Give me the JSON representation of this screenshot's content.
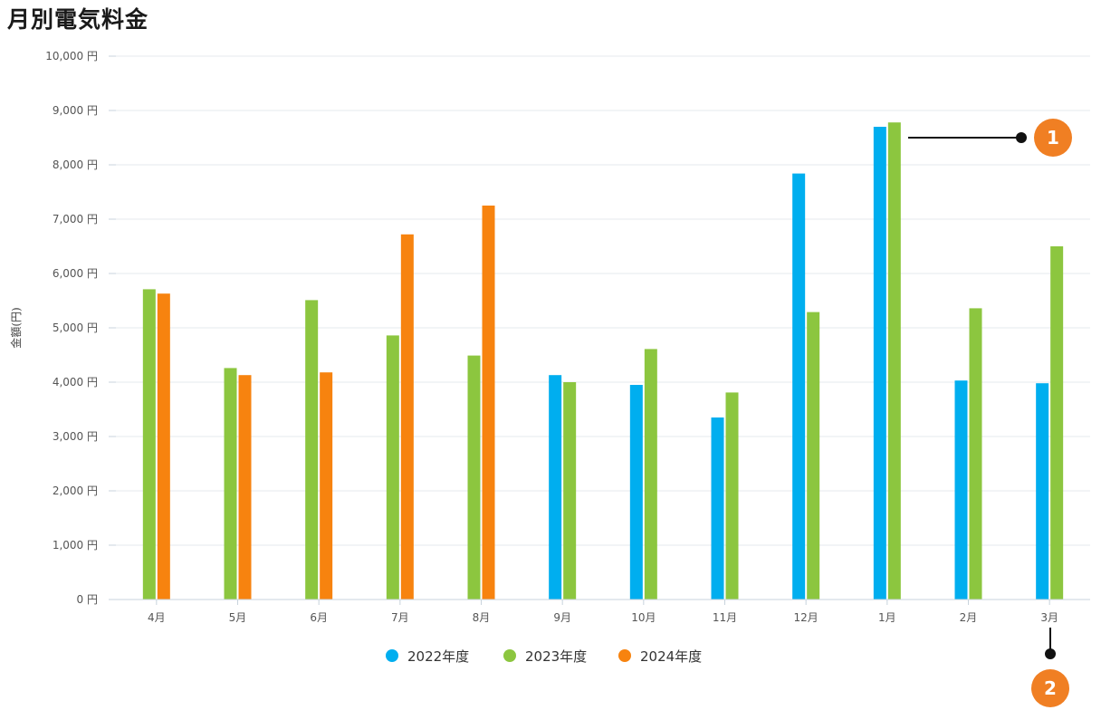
{
  "chart_data": {
    "type": "bar",
    "title": "月別電気料金",
    "ylabel": "金額(円)",
    "ylim": [
      0,
      10000
    ],
    "yticks": [
      0,
      1000,
      2000,
      3000,
      4000,
      5000,
      6000,
      7000,
      8000,
      9000,
      10000
    ],
    "ytick_labels": [
      "0 円",
      "1,000 円",
      "2,000 円",
      "3,000 円",
      "4,000 円",
      "5,000 円",
      "6,000 円",
      "7,000 円",
      "8,000 円",
      "9,000 円",
      "10,000 円"
    ],
    "categories": [
      "4月",
      "5月",
      "6月",
      "7月",
      "8月",
      "9月",
      "10月",
      "11月",
      "12月",
      "1月",
      "2月",
      "3月"
    ],
    "series": [
      {
        "name": "2022年度",
        "color": "#00aeef",
        "values": [
          null,
          null,
          null,
          null,
          null,
          4130,
          3950,
          3350,
          7840,
          8700,
          4030,
          3980
        ]
      },
      {
        "name": "2023年度",
        "color": "#8cc63f",
        "values": [
          5710,
          4260,
          5510,
          4860,
          4490,
          4000,
          4610,
          3810,
          5290,
          8780,
          5360,
          6500
        ]
      },
      {
        "name": "2024年度",
        "color": "#f7830f",
        "values": [
          5630,
          4130,
          4180,
          6720,
          7250,
          null,
          null,
          null,
          null,
          null,
          null,
          null
        ]
      }
    ],
    "grid": true,
    "legend": "bottom",
    "annotations": [
      "1",
      "2"
    ]
  }
}
